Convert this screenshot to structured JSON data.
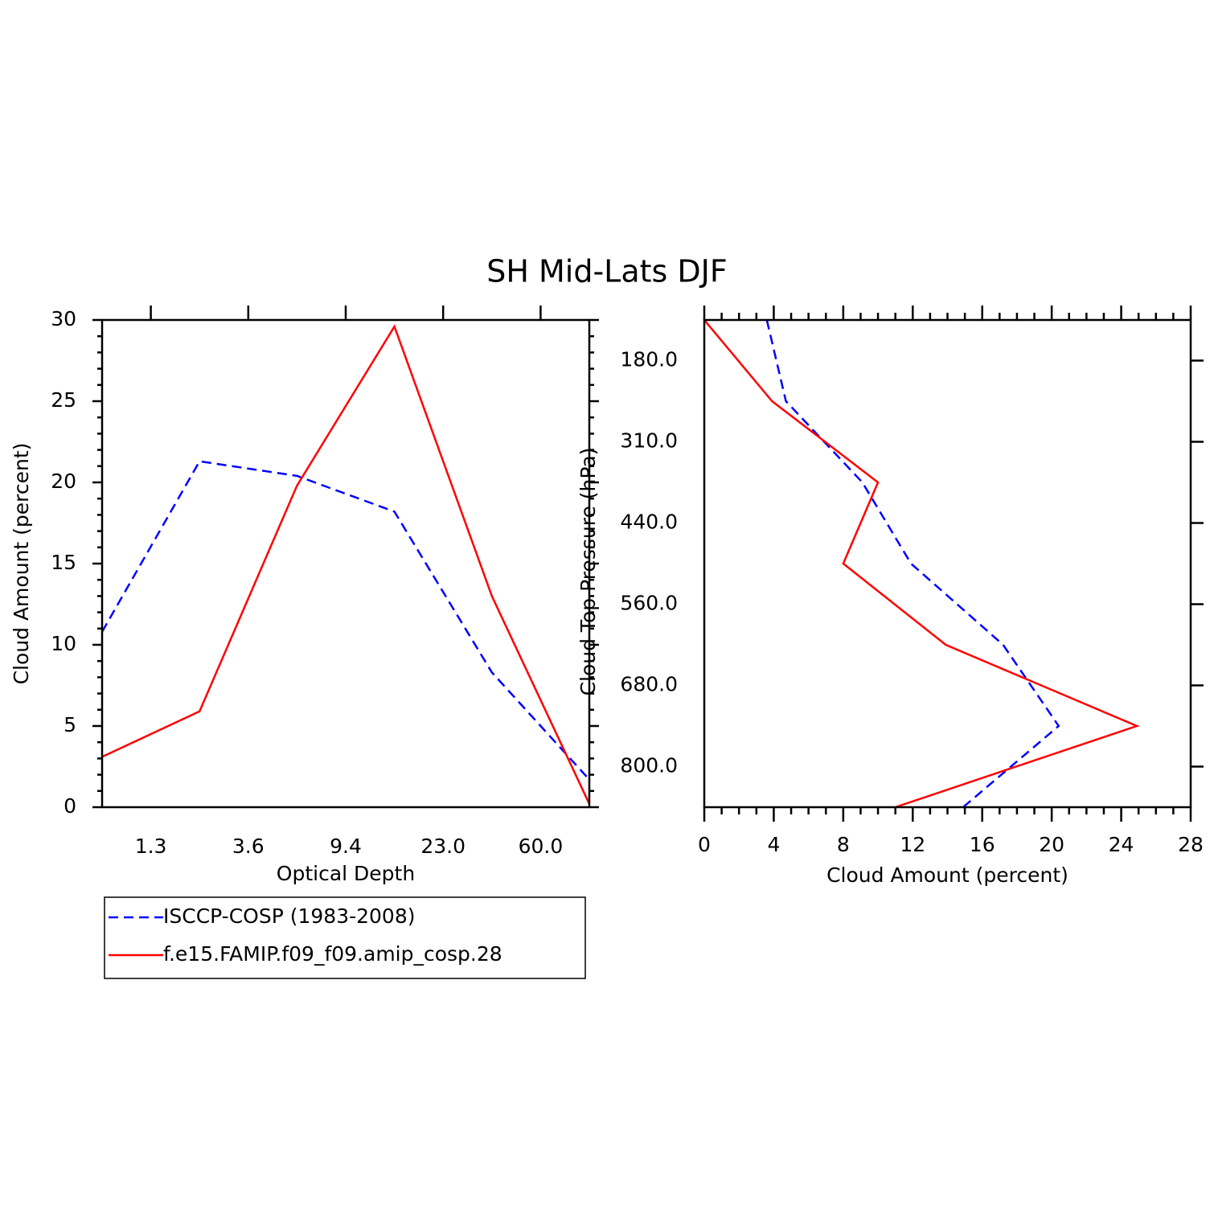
{
  "title": "SH Mid-Lats DJF",
  "chart_data": [
    {
      "type": "line",
      "orientation": "vertical",
      "xlabel": "Optical Depth",
      "ylabel": "Cloud Amount (percent)",
      "xlim": [
        0,
        5
      ],
      "xticks": [
        {
          "value": 0.5,
          "label": "1.3"
        },
        {
          "value": 1.5,
          "label": "3.6"
        },
        {
          "value": 2.5,
          "label": "9.4"
        },
        {
          "value": 3.5,
          "label": "23.0"
        },
        {
          "value": 4.5,
          "label": "60.0"
        }
      ],
      "ylim": [
        0,
        30
      ],
      "yticks": [
        0,
        5,
        10,
        15,
        20,
        25,
        30
      ],
      "series": [
        {
          "name": "ISCCP-COSP (1983-2008)",
          "color": "#0000ff",
          "dash": true,
          "values": [
            10.8,
            21.3,
            20.4,
            18.2,
            8.3,
            1.7
          ]
        },
        {
          "name": "f.e15.FAMIP.f09_f09.amip_cosp.28",
          "color": "#ff0000",
          "dash": false,
          "values": [
            3.1,
            5.9,
            19.8,
            29.6,
            13.0,
            0.2
          ]
        }
      ]
    },
    {
      "type": "line",
      "orientation": "horizontal",
      "xlabel": "Cloud Amount (percent)",
      "ylabel": "Cloud Top Pressure (hPa)",
      "xlim": [
        0,
        28
      ],
      "xticks": [
        0,
        4,
        8,
        12,
        16,
        20,
        24,
        28
      ],
      "ylim": [
        6,
        0
      ],
      "yticks": [
        {
          "value": 0.5,
          "label": "180.0"
        },
        {
          "value": 1.5,
          "label": "310.0"
        },
        {
          "value": 2.5,
          "label": "440.0"
        },
        {
          "value": 3.5,
          "label": "560.0"
        },
        {
          "value": 4.5,
          "label": "680.0"
        },
        {
          "value": 5.5,
          "label": "800.0"
        }
      ],
      "series": [
        {
          "name": "ISCCP-COSP (1983-2008)",
          "color": "#0000ff",
          "dash": true,
          "values": [
            3.6,
            4.7,
            9.1,
            11.9,
            17.2,
            20.4,
            14.9
          ]
        },
        {
          "name": "f.e15.FAMIP.f09_f09.amip_cosp.28",
          "color": "#ff0000",
          "dash": false,
          "values": [
            0,
            3.9,
            10.0,
            8.0,
            13.9,
            24.9,
            11.0
          ]
        }
      ]
    }
  ]
}
